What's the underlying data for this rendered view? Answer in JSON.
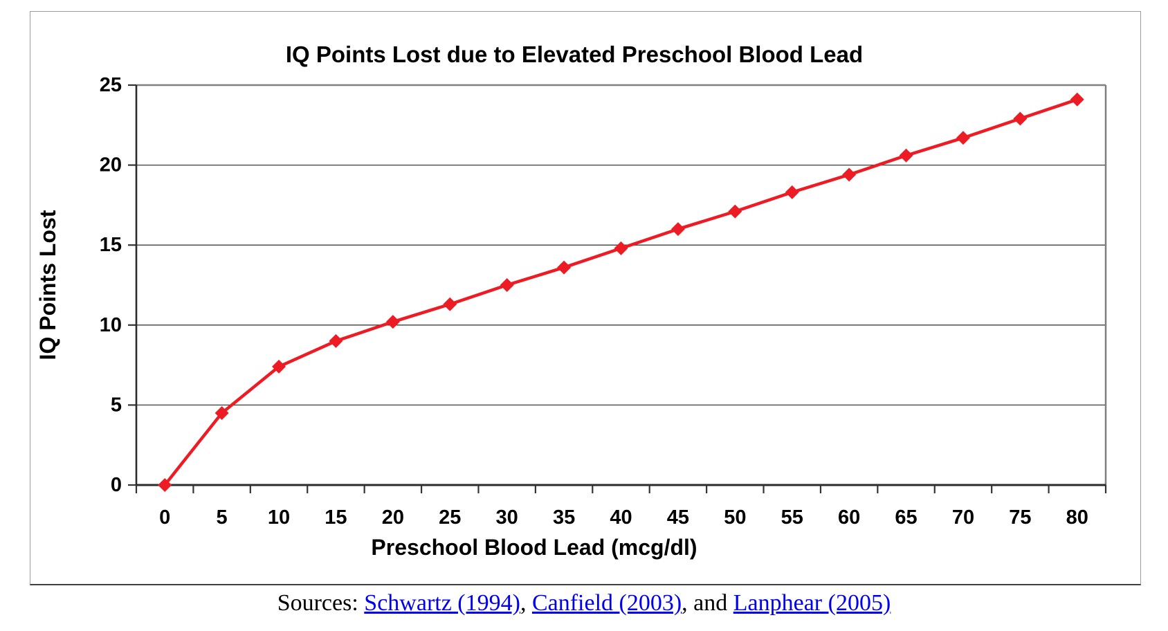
{
  "chart_data": {
    "type": "line",
    "title": "IQ Points Lost due to Elevated Preschool Blood Lead",
    "xlabel": "Preschool Blood Lead (mcg/dl)",
    "ylabel": "IQ Points Lost",
    "categories": [
      0,
      5,
      10,
      15,
      20,
      25,
      30,
      35,
      40,
      45,
      50,
      55,
      60,
      65,
      70,
      75,
      80
    ],
    "series": [
      {
        "name": "IQ points lost",
        "color": "#ED1C24",
        "marker": "diamond",
        "values": [
          0,
          4.5,
          7.4,
          9.0,
          10.2,
          11.3,
          12.5,
          13.6,
          14.8,
          16.0,
          17.1,
          18.3,
          19.4,
          20.6,
          21.7,
          22.9,
          24.1
        ]
      }
    ],
    "ylim": [
      0,
      25
    ],
    "y_ticks": [
      0,
      5,
      10,
      15,
      20,
      25
    ],
    "grid": true,
    "legend": "none"
  },
  "sources": {
    "prefix": "Sources: ",
    "sep1": ", ",
    "sep2": ", and ",
    "links": [
      {
        "label": "Schwartz (1994)"
      },
      {
        "label": "Canfield (2003)"
      },
      {
        "label": "Lanphear (2005)"
      }
    ],
    "link_color": "#0000EE"
  }
}
